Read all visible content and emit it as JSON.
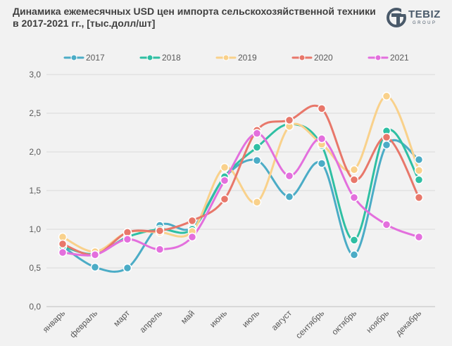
{
  "title": "Динамика ежемесячных USD цен импорта сельскохозяйственной техники в 2017-2021 гг., [тыс.долл/шт]",
  "logo": {
    "word": "TEBIZ",
    "sub": "GROUP",
    "icon": "tebiz-logo-icon"
  },
  "chart_data": {
    "type": "line",
    "title": "Динамика ежемесячных USD цен импорта сельскохозяйственной техники в 2017-2021 гг., [тыс.долл/шт]",
    "xlabel": "",
    "ylabel": "",
    "ylim": [
      0,
      3
    ],
    "ytick_step": 0.5,
    "yticks": [
      "0,0",
      "0,5",
      "1,0",
      "1,5",
      "2,0",
      "2,5",
      "3,0"
    ],
    "grid": true,
    "legend_position": "top",
    "smooth": true,
    "categories": [
      "январь",
      "февраль",
      "март",
      "апрель",
      "май",
      "июнь",
      "июль",
      "август",
      "сентябрь",
      "октябрь",
      "ноябрь",
      "декабрь"
    ],
    "series": [
      {
        "name": "2017",
        "color": "#4bacc6",
        "values": [
          0.78,
          0.51,
          0.5,
          1.05,
          1.02,
          1.67,
          1.89,
          1.42,
          1.85,
          0.67,
          2.09,
          1.9
        ]
      },
      {
        "name": "2018",
        "color": "#2fbfa3",
        "values": [
          0.78,
          0.68,
          0.9,
          1.0,
          1.0,
          1.68,
          2.06,
          2.36,
          2.08,
          0.86,
          2.27,
          1.64
        ]
      },
      {
        "name": "2019",
        "color": "#f9d18b",
        "values": [
          0.9,
          0.71,
          0.96,
          0.96,
          0.97,
          1.8,
          1.35,
          2.33,
          2.1,
          1.77,
          2.72,
          1.76
        ]
      },
      {
        "name": "2020",
        "color": "#e8776a",
        "values": [
          0.81,
          0.67,
          0.96,
          0.98,
          1.11,
          1.39,
          2.28,
          2.41,
          2.56,
          1.64,
          2.19,
          1.41
        ]
      },
      {
        "name": "2021",
        "color": "#e36fdd",
        "values": [
          0.7,
          0.67,
          0.87,
          0.74,
          0.9,
          1.63,
          2.24,
          1.69,
          2.17,
          1.41,
          1.06,
          0.9
        ]
      }
    ]
  }
}
